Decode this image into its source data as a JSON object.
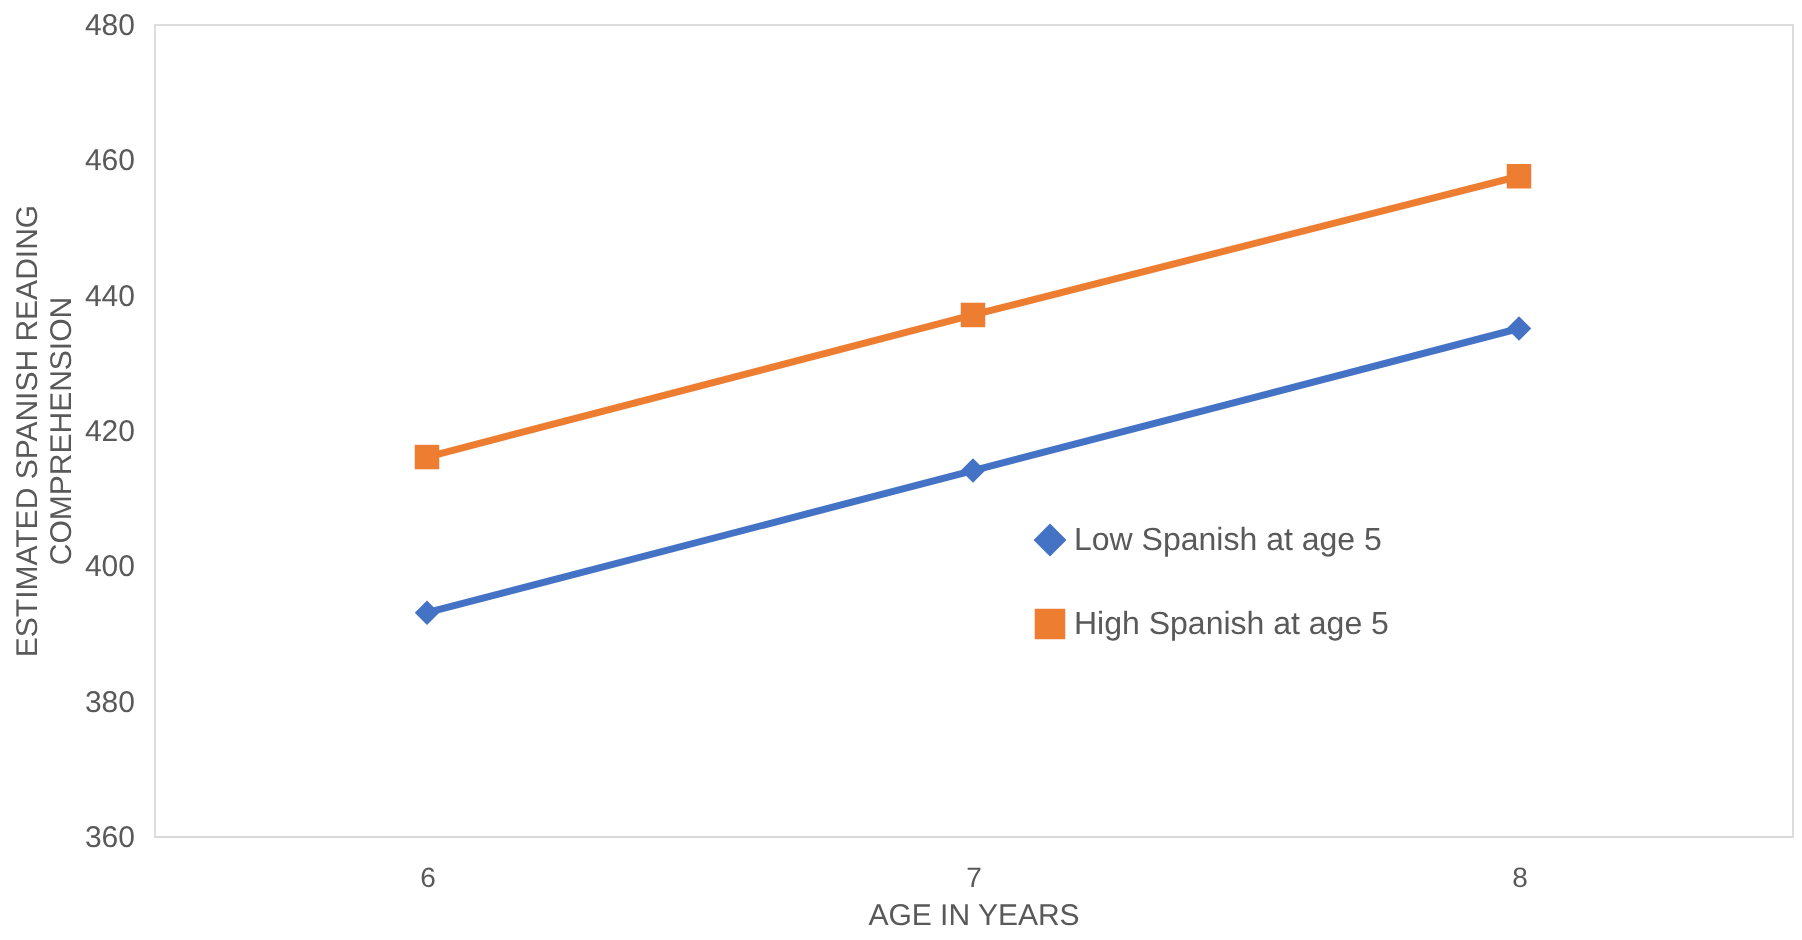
{
  "chart_data": {
    "type": "line",
    "categories": [
      "6",
      "7",
      "8"
    ],
    "series": [
      {
        "name": "Low Spanish at age 5",
        "color": "#4472c4",
        "marker": "diamond",
        "values": [
          393,
          414,
          435
        ]
      },
      {
        "name": "High Spanish at age 5",
        "color": "#ed7d31",
        "marker": "square",
        "values": [
          416,
          437,
          457.5
        ]
      }
    ],
    "xlabel": "AGE IN YEARS",
    "ylabel": "ESTIMATED SPANISH READING\nCOMPREHENSION",
    "ylim": [
      360,
      480
    ],
    "yticks": [
      360,
      380,
      400,
      420,
      440,
      460,
      480
    ],
    "grid": false,
    "legend": "bottom right",
    "line_style": "solid"
  }
}
